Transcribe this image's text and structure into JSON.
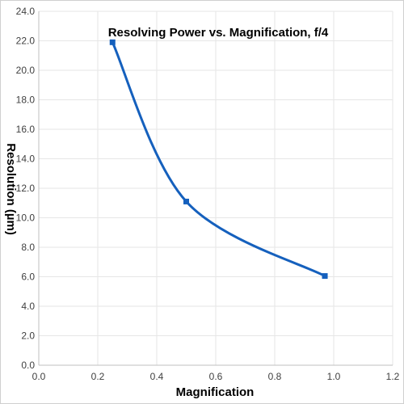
{
  "chart_data": {
    "type": "scatter",
    "title": "Resolving Power vs. Magnification, f/4",
    "xlabel": "Magnification",
    "ylabel": "Resolution (µm)",
    "xlim": [
      0.0,
      1.2
    ],
    "ylim": [
      0.0,
      24.0
    ],
    "x_ticks": [
      "0.0",
      "0.2",
      "0.4",
      "0.6",
      "0.8",
      "1.0",
      "1.2"
    ],
    "y_ticks": [
      "0.0",
      "2.0",
      "4.0",
      "6.0",
      "8.0",
      "10.0",
      "12.0",
      "14.0",
      "16.0",
      "18.0",
      "20.0",
      "22.0",
      "24.0"
    ],
    "grid": true,
    "line_style": "smooth",
    "series": [
      {
        "color": "#1560bd",
        "marker": "square",
        "points": [
          {
            "x": 0.25,
            "y": 21.9
          },
          {
            "x": 0.5,
            "y": 11.1
          },
          {
            "x": 0.97,
            "y": 6.05
          }
        ]
      }
    ]
  }
}
